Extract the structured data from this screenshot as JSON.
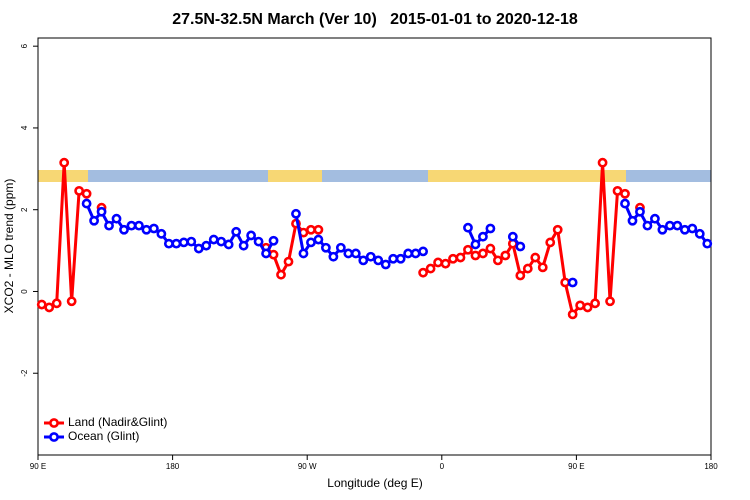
{
  "chart_data": {
    "type": "line",
    "title": "27.5N-32.5N March (Ver 10)   2015-01-01 to 2020-12-18",
    "xlabel": "Longitude (deg E)",
    "ylabel": "XCO2 - MLO trend (ppm)",
    "xlim": [
      90,
      540
    ],
    "ylim": [
      -4,
      6.2
    ],
    "xticks": [
      {
        "value": 90,
        "label": "90 E"
      },
      180,
      {
        "value": 270,
        "label": "90 W"
      },
      {
        "value": 360,
        "label": "0"
      },
      {
        "value": 450,
        "label": "90 E"
      },
      {
        "value": 540,
        "label": "180"
      }
    ],
    "yticks": [
      -2,
      0,
      2,
      4,
      6
    ],
    "legend": "bottom-left",
    "x": [
      92.5,
      97.5,
      102.5,
      107.5,
      112.5,
      117.5,
      122.5,
      127.5,
      132.5,
      137.5,
      142.5,
      147.5,
      152.5,
      157.5,
      162.5,
      167.5,
      172.5,
      177.5,
      182.5,
      187.5,
      192.5,
      197.5,
      202.5,
      207.5,
      212.5,
      217.5,
      222.5,
      227.5,
      232.5,
      237.5,
      242.5,
      247.5,
      252.5,
      257.5,
      262.5,
      267.5,
      272.5,
      277.5,
      282.5,
      287.5,
      292.5,
      297.5,
      302.5,
      307.5,
      312.5,
      317.5,
      322.5,
      327.5,
      332.5,
      337.5,
      342.5,
      347.5,
      352.5,
      357.5,
      362.5,
      367.5,
      372.5,
      377.5,
      382.5,
      387.5,
      392.5,
      397.5,
      402.5,
      407.5,
      412.5,
      417.5,
      422.5,
      427.5,
      432.5,
      437.5,
      442.5,
      447.5,
      452.5,
      457.5,
      462.5,
      467.5,
      472.5,
      477.5,
      482.5,
      487.5,
      492.5,
      497.5,
      502.5,
      507.5,
      512.5,
      517.5,
      522.5,
      527.5,
      532.5,
      537.5
    ],
    "series": [
      {
        "name": "Land (Nadir&Glint)",
        "color": "#ff0000",
        "values": [
          -0.32,
          -0.39,
          -0.29,
          3.15,
          -0.24,
          2.46,
          2.39,
          null,
          2.05,
          null,
          null,
          null,
          null,
          null,
          null,
          null,
          null,
          null,
          null,
          null,
          null,
          null,
          null,
          null,
          null,
          null,
          null,
          null,
          null,
          null,
          1.07,
          0.9,
          0.41,
          0.73,
          1.66,
          1.44,
          1.51,
          1.51,
          null,
          null,
          null,
          null,
          null,
          null,
          null,
          null,
          null,
          null,
          null,
          null,
          null,
          0.46,
          0.56,
          0.71,
          0.68,
          0.8,
          0.83,
          1.02,
          0.88,
          0.93,
          1.05,
          0.76,
          0.88,
          1.17,
          0.39,
          0.56,
          0.83,
          0.59,
          1.2,
          1.51,
          0.22,
          -0.56,
          -0.34,
          -0.39,
          -0.29,
          3.15,
          -0.24,
          2.46,
          2.39,
          null,
          2.05,
          null,
          null,
          null,
          null,
          null,
          null,
          null,
          null,
          null
        ]
      },
      {
        "name": "Ocean (Glint)",
        "color": "#0000ff",
        "values": [
          null,
          null,
          null,
          null,
          null,
          null,
          2.15,
          1.73,
          1.95,
          1.61,
          1.78,
          1.51,
          1.61,
          1.61,
          1.51,
          1.54,
          1.41,
          1.17,
          1.17,
          1.2,
          1.22,
          1.05,
          1.12,
          1.27,
          1.22,
          1.15,
          1.46,
          1.12,
          1.37,
          1.22,
          0.93,
          1.24,
          null,
          null,
          1.9,
          0.93,
          1.2,
          1.27,
          1.07,
          0.85,
          1.07,
          0.93,
          0.93,
          0.76,
          0.85,
          0.76,
          0.66,
          0.8,
          0.8,
          0.93,
          0.93,
          0.98,
          null,
          null,
          null,
          null,
          null,
          1.56,
          1.15,
          1.34,
          1.54,
          null,
          null,
          1.34,
          1.1,
          null,
          null,
          null,
          null,
          null,
          null,
          0.22,
          null,
          null,
          null,
          null,
          null,
          null,
          2.15,
          1.73,
          1.95,
          1.61,
          1.78,
          1.51,
          1.61,
          1.61,
          1.51,
          1.54,
          1.41,
          1.17
        ]
      }
    ]
  }
}
